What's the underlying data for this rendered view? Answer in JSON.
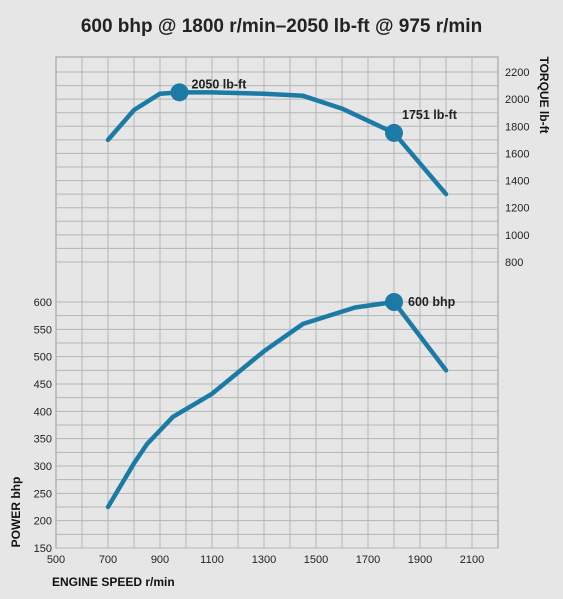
{
  "title": "600 bhp @ 1800 r/min–2050 lb-ft @ 975 r/min",
  "colors": {
    "background": "#e6e6e6",
    "grid": "#b5b5b5",
    "plot_border": "#9a9a9a",
    "line": "#1c7ba6",
    "marker": "#1c7ba6"
  },
  "chart_data": [
    {
      "type": "line",
      "name": "torque",
      "ylabel": "TORQUE lb-ft",
      "y_axis_side": "right",
      "yticks": [
        800,
        1000,
        1200,
        1400,
        1600,
        1800,
        2000,
        2200
      ],
      "ylim": [
        600,
        2300
      ],
      "xlim": [
        500,
        2200
      ],
      "x": [
        700,
        800,
        900,
        975,
        1100,
        1300,
        1450,
        1600,
        1800,
        2000
      ],
      "y": [
        1700,
        1920,
        2040,
        2050,
        2050,
        2040,
        2025,
        1930,
        1751,
        1300
      ],
      "annotations": [
        {
          "x": 975,
          "y": 2050,
          "label": "2050 lb-ft"
        },
        {
          "x": 1800,
          "y": 1751,
          "label": "1751 lb-ft"
        }
      ],
      "grid": true
    },
    {
      "type": "line",
      "name": "power",
      "ylabel": "POWER bhp",
      "y_axis_side": "left",
      "yticks": [
        150,
        200,
        250,
        300,
        350,
        400,
        450,
        500,
        550,
        600
      ],
      "ylim": [
        150,
        640
      ],
      "xlabel": "ENGINE SPEED r/min",
      "xticks": [
        500,
        700,
        900,
        1100,
        1300,
        1500,
        1700,
        1900,
        2100
      ],
      "xlim": [
        500,
        2200
      ],
      "x": [
        700,
        800,
        850,
        950,
        1100,
        1300,
        1450,
        1650,
        1800,
        2000
      ],
      "y": [
        225,
        305,
        340,
        390,
        432,
        510,
        560,
        590,
        600,
        475
      ],
      "annotations": [
        {
          "x": 1800,
          "y": 600,
          "label": "600 bhp"
        }
      ],
      "grid": true
    }
  ]
}
